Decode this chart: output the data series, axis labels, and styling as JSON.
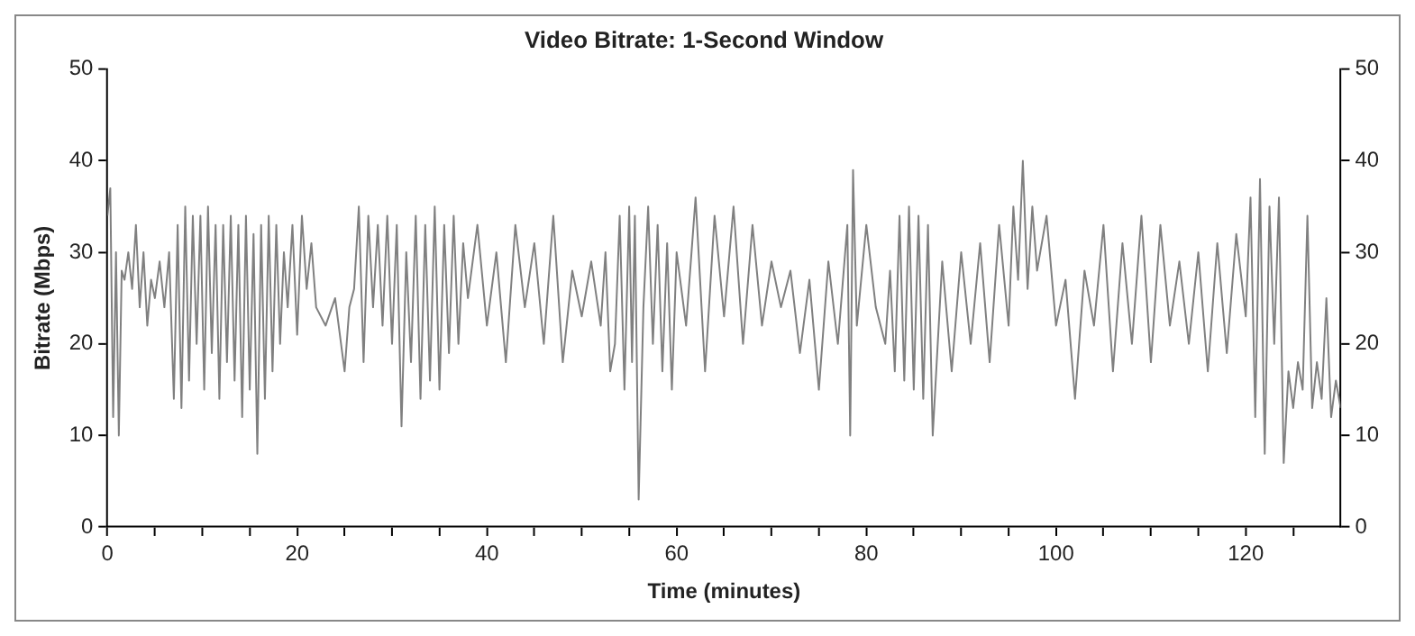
{
  "chart_data": {
    "type": "line",
    "title": "Video Bitrate: 1-Second Window",
    "xlabel": "Time (minutes)",
    "ylabel": "Bitrate (Mbps)",
    "x": [
      0,
      0.3,
      0.6,
      0.9,
      1.2,
      1.5,
      1.8,
      2.2,
      2.6,
      3,
      3.4,
      3.8,
      4.2,
      4.6,
      5,
      5.5,
      6,
      6.5,
      7,
      7.4,
      7.8,
      8.2,
      8.6,
      9,
      9.4,
      9.8,
      10.2,
      10.6,
      11,
      11.4,
      11.8,
      12.2,
      12.6,
      13,
      13.4,
      13.8,
      14.2,
      14.6,
      15,
      15.4,
      15.8,
      16.2,
      16.6,
      17,
      17.4,
      17.8,
      18.2,
      18.6,
      19,
      19.5,
      20,
      20.5,
      21,
      21.5,
      22,
      23,
      24,
      25,
      25.5,
      26,
      26.5,
      27,
      27.5,
      28,
      28.5,
      29,
      29.5,
      30,
      30.5,
      31,
      31.5,
      32,
      32.5,
      33,
      33.5,
      34,
      34.5,
      35,
      35.5,
      36,
      36.5,
      37,
      37.5,
      38,
      39,
      40,
      41,
      42,
      43,
      44,
      45,
      46,
      47,
      48,
      49,
      50,
      51,
      52,
      52.5,
      53,
      53.5,
      54,
      54.5,
      55,
      55.3,
      55.6,
      56,
      56.5,
      57,
      57.5,
      58,
      58.5,
      59,
      59.5,
      60,
      61,
      62,
      63,
      64,
      65,
      66,
      67,
      68,
      69,
      70,
      71,
      72,
      73,
      74,
      75,
      76,
      77,
      78,
      78.3,
      78.6,
      79,
      80,
      81,
      82,
      82.5,
      83,
      83.5,
      84,
      84.5,
      85,
      85.5,
      86,
      86.5,
      87,
      88,
      89,
      90,
      91,
      92,
      93,
      94,
      95,
      95.5,
      96,
      96.5,
      97,
      97.5,
      98,
      99,
      100,
      101,
      102,
      103,
      104,
      105,
      106,
      107,
      108,
      109,
      110,
      111,
      112,
      113,
      114,
      115,
      116,
      117,
      118,
      119,
      120,
      120.5,
      121,
      121.5,
      122,
      122.5,
      123,
      123.5,
      124,
      124.5,
      125,
      125.5,
      126,
      126.5,
      127,
      127.5,
      128,
      128.5,
      129,
      129.5,
      130
    ],
    "series": [
      {
        "color": "#808080",
        "values": [
          34,
          37,
          12,
          30,
          10,
          28,
          27,
          30,
          26,
          33,
          24,
          30,
          22,
          27,
          25,
          29,
          24,
          30,
          14,
          33,
          13,
          35,
          16,
          34,
          20,
          34,
          15,
          35,
          19,
          33,
          14,
          33,
          18,
          34,
          16,
          33,
          12,
          34,
          15,
          32,
          8,
          33,
          14,
          34,
          17,
          33,
          20,
          30,
          24,
          33,
          21,
          34,
          26,
          31,
          24,
          22,
          25,
          17,
          24,
          26,
          35,
          18,
          34,
          24,
          33,
          22,
          34,
          20,
          33,
          11,
          30,
          18,
          34,
          14,
          33,
          16,
          35,
          15,
          33,
          19,
          34,
          20,
          31,
          25,
          33,
          22,
          30,
          18,
          33,
          24,
          31,
          20,
          34,
          18,
          28,
          23,
          29,
          22,
          30,
          17,
          20,
          34,
          15,
          35,
          18,
          34,
          3,
          24,
          35,
          20,
          33,
          17,
          31,
          15,
          30,
          22,
          36,
          17,
          34,
          23,
          35,
          20,
          33,
          22,
          29,
          24,
          28,
          19,
          27,
          15,
          29,
          20,
          33,
          10,
          39,
          22,
          33,
          24,
          20,
          28,
          17,
          34,
          16,
          35,
          15,
          34,
          14,
          33,
          10,
          29,
          17,
          30,
          20,
          31,
          18,
          33,
          22,
          35,
          27,
          40,
          26,
          35,
          28,
          34,
          22,
          27,
          14,
          28,
          22,
          33,
          17,
          31,
          20,
          34,
          18,
          33,
          22,
          29,
          20,
          30,
          17,
          31,
          19,
          32,
          23,
          36,
          12,
          38,
          8,
          35,
          20,
          36,
          7,
          17,
          13,
          18,
          15,
          34,
          13,
          18,
          14,
          25,
          12,
          16,
          13
        ]
      }
    ],
    "xlim": [
      0,
      130
    ],
    "xticks": [
      0,
      {
        "value": 5,
        "label": null
      },
      {
        "value": 10,
        "label": null
      },
      {
        "value": 15,
        "label": null
      },
      20,
      {
        "value": 25,
        "label": null
      },
      {
        "value": 30,
        "label": null
      },
      {
        "value": 35,
        "label": null
      },
      40,
      {
        "value": 45,
        "label": null
      },
      {
        "value": 50,
        "label": null
      },
      {
        "value": 55,
        "label": null
      },
      60,
      {
        "value": 65,
        "label": null
      },
      {
        "value": 70,
        "label": null
      },
      {
        "value": 75,
        "label": null
      },
      80,
      {
        "value": 85,
        "label": null
      },
      {
        "value": 90,
        "label": null
      },
      {
        "value": 95,
        "label": null
      },
      100,
      {
        "value": 105,
        "label": null
      },
      {
        "value": 110,
        "label": null
      },
      {
        "value": 115,
        "label": null
      },
      120,
      {
        "value": 125,
        "label": null
      }
    ],
    "ylim": [
      0,
      50
    ],
    "yticks": [
      0,
      10,
      20,
      30,
      40,
      50
    ],
    "y2lim": [
      0,
      50
    ],
    "y2ticks": [
      0,
      10,
      20,
      30,
      40,
      50
    ],
    "grid": false,
    "legend": false,
    "marker": "none",
    "line_style": "solid"
  }
}
